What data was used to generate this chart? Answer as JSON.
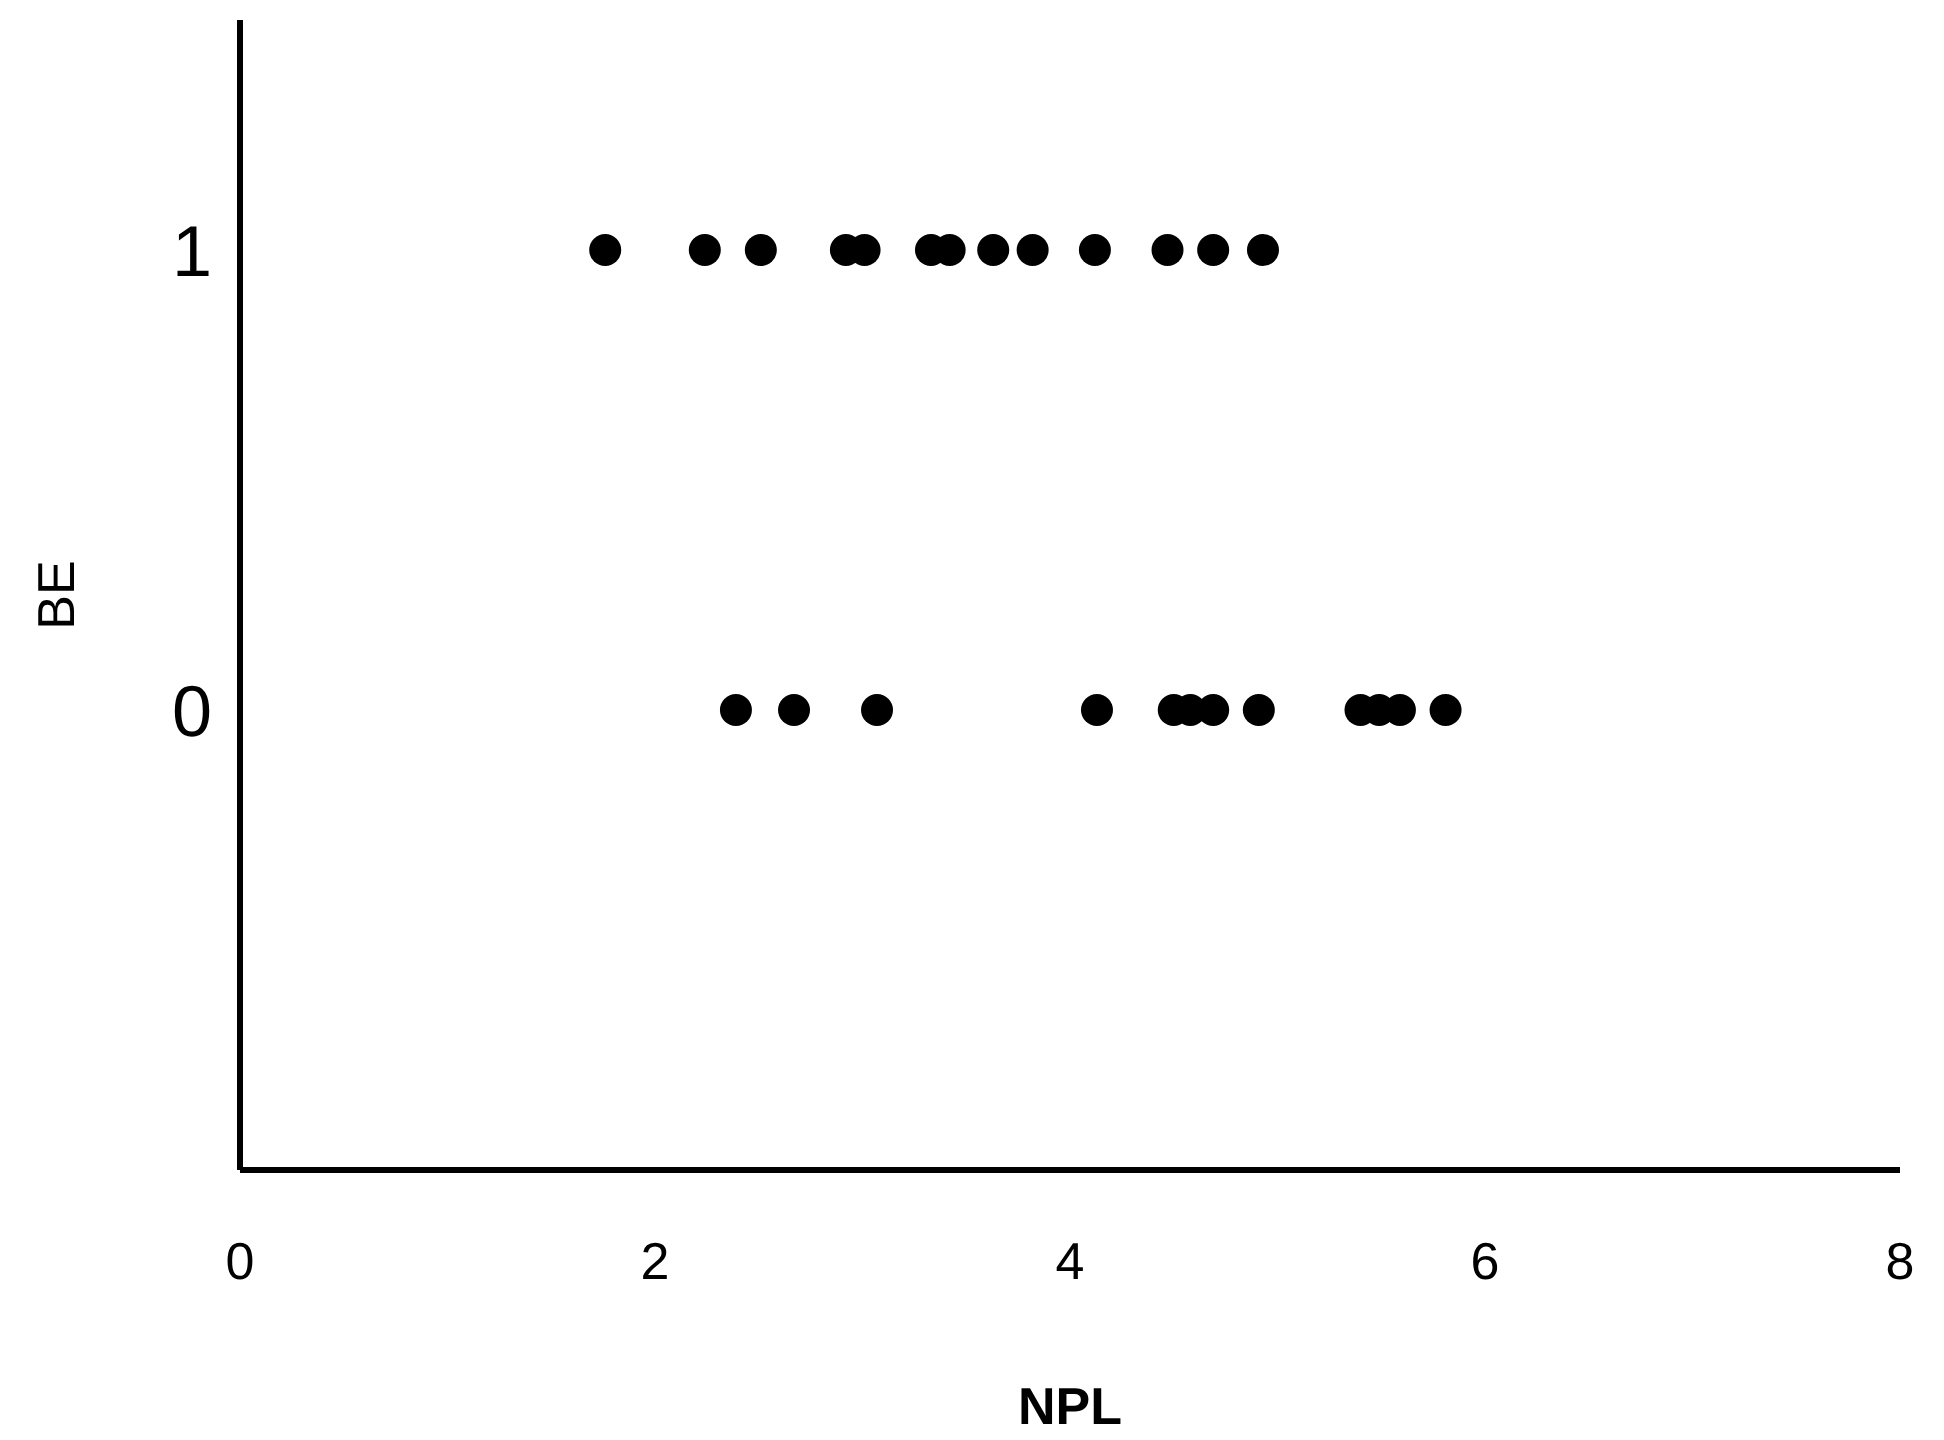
{
  "chart_data": {
    "type": "scatter",
    "xlabel": "NPL",
    "ylabel": "BE",
    "xlim": [
      0,
      8
    ],
    "xticks": [
      0,
      2,
      4,
      6,
      8
    ],
    "ylim": [
      -1,
      1.5
    ],
    "yticks": [
      0,
      1
    ],
    "marker": "circle",
    "series": [
      {
        "color": "#000000",
        "x": [
          1.76,
          2.24,
          2.51,
          2.92,
          3.01,
          3.33,
          3.42,
          3.63,
          3.82,
          4.12,
          4.47,
          4.69,
          4.93,
          2.39,
          2.67,
          3.07,
          4.13,
          4.5,
          4.58,
          4.69,
          4.91,
          5.4,
          5.49,
          5.59,
          5.81
        ],
        "values": [
          1,
          1,
          1,
          1,
          1,
          1,
          1,
          1,
          1,
          1,
          1,
          1,
          1,
          0,
          0,
          0,
          0,
          0,
          0,
          0,
          0,
          0,
          0,
          0,
          0
        ]
      }
    ]
  }
}
